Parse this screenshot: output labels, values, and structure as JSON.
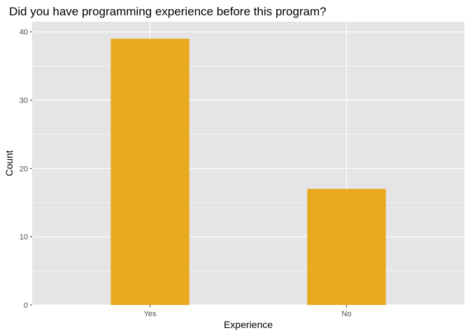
{
  "chart_data": {
    "type": "bar",
    "title": "Did you have programming experience before this program?",
    "xlabel": "Experience",
    "ylabel": "Count",
    "categories": [
      "Yes",
      "No"
    ],
    "values": [
      39,
      17
    ],
    "ylim": [
      0,
      41.5
    ],
    "yticks": [
      0,
      10,
      20,
      30,
      40
    ],
    "bar_color": "#E8A91E",
    "panel_background": "#E5E5E5",
    "grid_color": "#FFFFFF",
    "grid": true,
    "legend": "none"
  }
}
